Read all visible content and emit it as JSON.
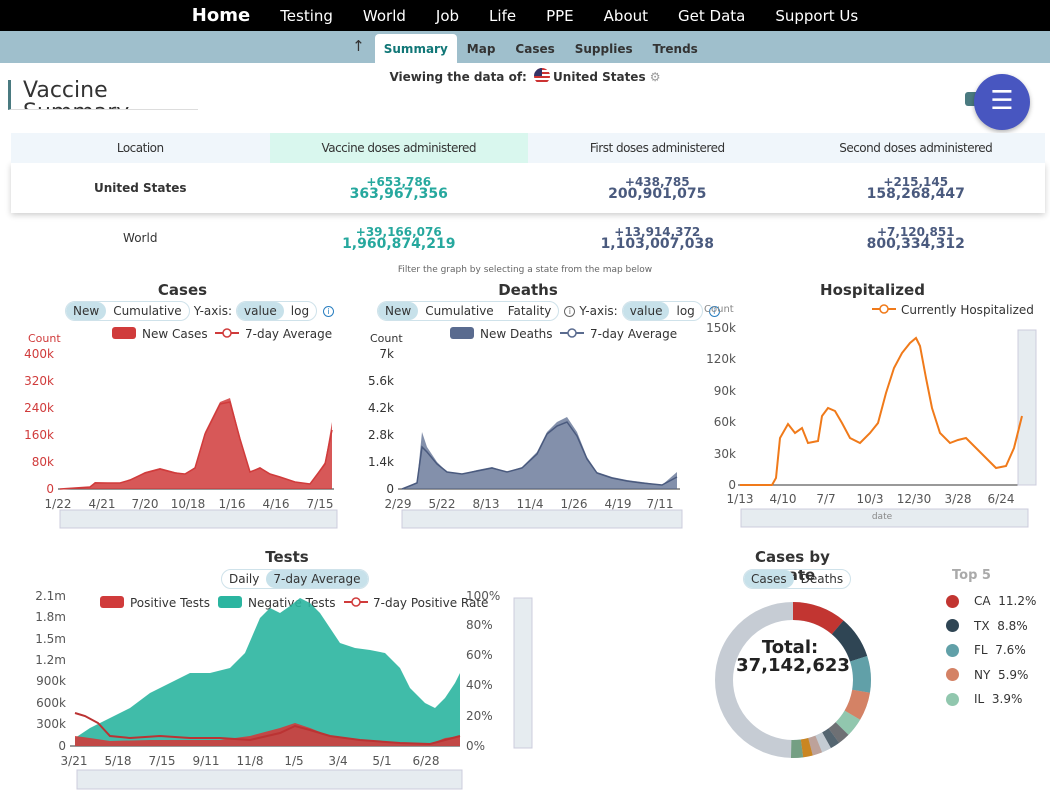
{
  "topnav": {
    "items": [
      "Home",
      "Testing",
      "World",
      "Job",
      "Life",
      "PPE",
      "About",
      "Get Data",
      "Support Us"
    ]
  },
  "subnav": {
    "up_icon": "up-arrow-icon",
    "items": [
      "Summary",
      "Map",
      "Cases",
      "Supplies",
      "Trends"
    ],
    "active": "Summary"
  },
  "viewing": {
    "label": "Viewing the data of:",
    "country": "United States",
    "flag_icon": "us-flag-icon",
    "settings_icon": "gear-icon"
  },
  "vaccine": {
    "title": "Vaccine Summary",
    "headers": [
      "Location",
      "Vaccine doses administered",
      "First doses administered",
      "Second doses administered"
    ],
    "rows": [
      {
        "location": "United States",
        "total_delta": "+653,786",
        "total": "363,967,356",
        "first_delta": "+438,785",
        "first": "200,901,075",
        "second_delta": "+215,145",
        "second": "158,268,447"
      },
      {
        "location": "World",
        "total_delta": "+39,166,076",
        "total": "1,960,874,219",
        "first_delta": "+13,914,372",
        "first": "1,103,007,038",
        "second_delta": "+7,120,851",
        "second": "800,334,312"
      }
    ]
  },
  "filter_note": "Filter the graph by selecting a state from the map below",
  "charts": {
    "cases": {
      "title": "Cases",
      "modes": [
        "New",
        "Cumulative"
      ],
      "yaxis_label": "Y-axis:",
      "scales": [
        "value",
        "log"
      ],
      "legend": [
        "New Cases",
        "7-day Average"
      ],
      "count_label": "Count",
      "yticks": [
        "0",
        "80k",
        "160k",
        "240k",
        "320k",
        "400k"
      ],
      "xticks": [
        "1/22",
        "4/21",
        "7/20",
        "10/18",
        "1/16",
        "4/16",
        "7/15"
      ],
      "color": "#d03b3b"
    },
    "deaths": {
      "title": "Deaths",
      "modes": [
        "New",
        "Cumulative",
        "Fatality"
      ],
      "yaxis_label": "Y-axis:",
      "scales": [
        "value",
        "log"
      ],
      "legend": [
        "New Deaths",
        "7-day Average"
      ],
      "count_label": "Count",
      "yticks": [
        "0",
        "1.4k",
        "2.8k",
        "4.2k",
        "5.6k",
        "7k"
      ],
      "xticks": [
        "2/29",
        "5/22",
        "8/13",
        "11/4",
        "1/26",
        "4/19",
        "7/11"
      ],
      "color": "#5a6b8f"
    },
    "hospitalized": {
      "title": "Hospitalized",
      "legend": [
        "Currently Hospitalized"
      ],
      "count_label": "Count",
      "yticks": [
        "0",
        "30k",
        "60k",
        "90k",
        "120k",
        "150k"
      ],
      "xticks": [
        "1/13",
        "4/10",
        "7/7",
        "10/3",
        "12/30",
        "3/28",
        "6/24"
      ],
      "xlabel": "date",
      "color": "#f07a1a"
    },
    "tests": {
      "title": "Tests",
      "modes": [
        "Daily",
        "7-day Average"
      ],
      "legend": [
        "Positive Tests",
        "Negative Tests",
        "7-day Positive Rate"
      ],
      "yticks": [
        "0",
        "300k",
        "600k",
        "900k",
        "1.2m",
        "1.5m",
        "1.8m",
        "2.1m"
      ],
      "y2ticks": [
        "0%",
        "20%",
        "40%",
        "60%",
        "80%",
        "100%"
      ],
      "xticks": [
        "3/21",
        "5/18",
        "7/15",
        "9/11",
        "11/8",
        "1/5",
        "3/4",
        "5/1",
        "6/28"
      ]
    },
    "by_state": {
      "title": "Cases by State",
      "modes": [
        "Cases",
        "Deaths"
      ],
      "total_label": "Total:",
      "total": "37,142,623",
      "top_title": "Top 5",
      "top": [
        {
          "state": "CA",
          "pct": "11.2%",
          "color": "#c23531"
        },
        {
          "state": "TX",
          "pct": "8.8%",
          "color": "#2f4554"
        },
        {
          "state": "FL",
          "pct": "7.6%",
          "color": "#61a0a8"
        },
        {
          "state": "NY",
          "pct": "5.9%",
          "color": "#d48265"
        },
        {
          "state": "IL",
          "pct": "3.9%",
          "color": "#91c7ae"
        }
      ]
    }
  },
  "chart_data": [
    {
      "type": "bar",
      "title": "Cases",
      "xlabel": "",
      "ylabel": "Count",
      "ylim": [
        0,
        400000
      ],
      "series": [
        {
          "name": "New Cases",
          "x": [
            "1/22",
            "4/21",
            "7/20",
            "10/18",
            "1/16",
            "4/16",
            "7/15"
          ],
          "values": [
            0,
            30000,
            65000,
            80000,
            250000,
            65000,
            30000
          ]
        },
        {
          "name": "7-day Average",
          "x": [
            "1/22",
            "4/21",
            "7/20",
            "10/18",
            "1/16",
            "4/16",
            "7/15"
          ],
          "values": [
            0,
            28000,
            62000,
            75000,
            240000,
            62000,
            28000
          ]
        }
      ]
    },
    {
      "type": "bar",
      "title": "Deaths",
      "ylabel": "Count",
      "ylim": [
        0,
        7000
      ],
      "series": [
        {
          "name": "New Deaths",
          "x": [
            "2/29",
            "5/22",
            "8/13",
            "11/4",
            "1/26",
            "4/19",
            "7/11"
          ],
          "values": [
            0,
            1500,
            1000,
            1200,
            3300,
            700,
            250
          ]
        }
      ]
    },
    {
      "type": "line",
      "title": "Hospitalized",
      "xlabel": "date",
      "ylabel": "Count",
      "ylim": [
        0,
        150000
      ],
      "series": [
        {
          "name": "Currently Hospitalized",
          "x": [
            "1/13",
            "4/10",
            "7/7",
            "10/3",
            "12/30",
            "3/28",
            "6/24"
          ],
          "values": [
            0,
            55000,
            55000,
            40000,
            125000,
            37000,
            18000
          ]
        }
      ]
    },
    {
      "type": "area",
      "title": "Tests",
      "ylim": [
        0,
        2100000
      ],
      "series": [
        {
          "name": "Positive Tests",
          "x": [
            "3/21",
            "5/18",
            "7/15",
            "9/11",
            "11/8",
            "1/5",
            "3/4",
            "5/1",
            "6/28"
          ],
          "values": [
            30000,
            25000,
            60000,
            50000,
            90000,
            150000,
            70000,
            40000,
            20000
          ]
        },
        {
          "name": "Negative Tests",
          "x": [
            "3/21",
            "5/18",
            "7/15",
            "9/11",
            "11/8",
            "1/5",
            "3/4",
            "5/1",
            "6/28"
          ],
          "values": [
            80000,
            250000,
            650000,
            800000,
            1500000,
            1800000,
            1350000,
            1100000,
            500000
          ]
        }
      ]
    },
    {
      "type": "pie",
      "title": "Cases by State",
      "series": [
        {
          "name": "Cases",
          "labels": [
            "CA",
            "TX",
            "FL",
            "NY",
            "IL"
          ],
          "values": [
            11.2,
            8.8,
            7.6,
            5.9,
            3.9
          ]
        }
      ]
    }
  ]
}
